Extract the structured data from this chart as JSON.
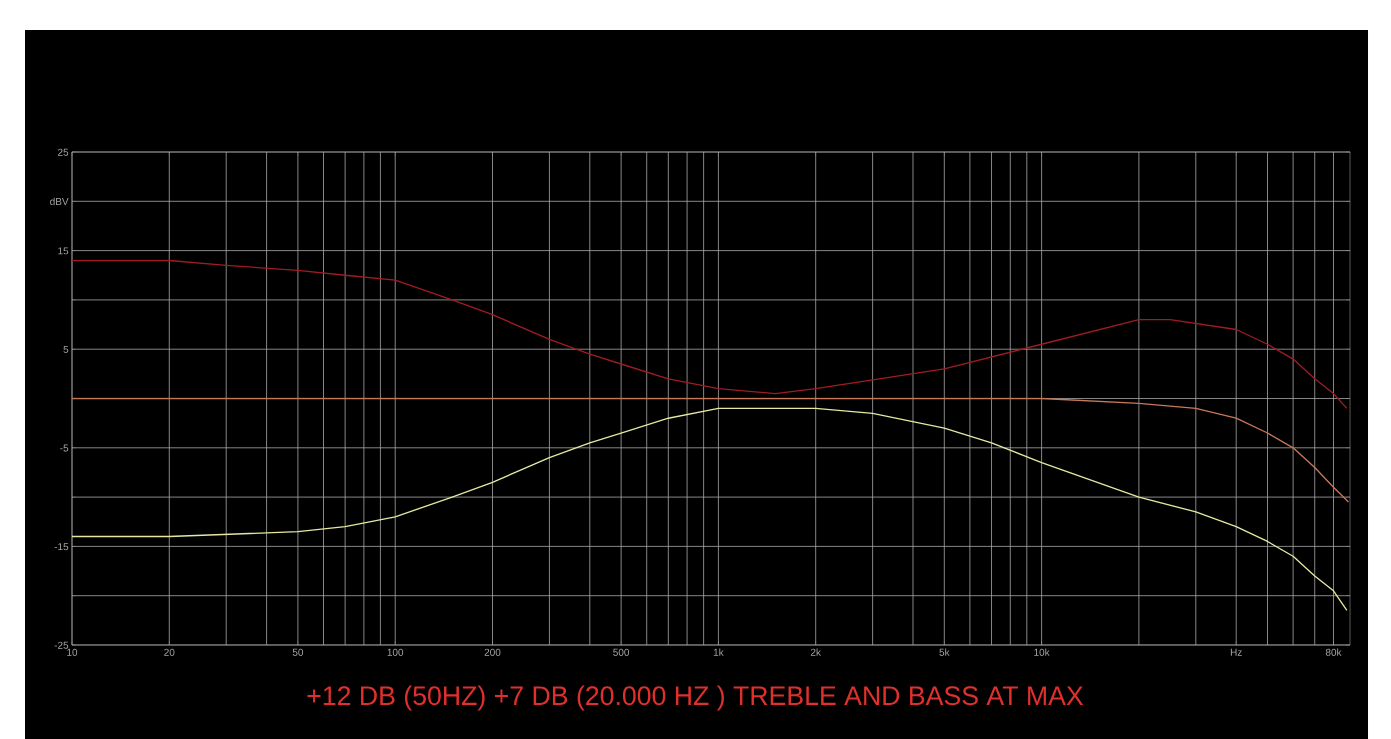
{
  "chart_data": {
    "type": "line",
    "title": "+12 DB (50HZ) +7 DB (20.000 HZ ) TREBLE AND BASS AT MAX",
    "log": "x",
    "grid": true,
    "xlim": [
      10,
      90000
    ],
    "ylim": [
      -25,
      25
    ],
    "xticks": [
      10,
      20,
      50,
      100,
      200,
      500,
      {
        "value": 1000,
        "label": "1k"
      },
      {
        "value": 2000,
        "label": "2k"
      },
      {
        "value": 5000,
        "label": "5k"
      },
      {
        "value": 10000,
        "label": "10k"
      },
      {
        "value": 40000,
        "label": "Hz"
      },
      {
        "value": 80000,
        "label": "80k"
      }
    ],
    "yticks": [
      25,
      {
        "value": 20,
        "label": "dBV"
      },
      15,
      {
        "value": 10,
        "label": null
      },
      5,
      {
        "value": 0,
        "label": null
      },
      -5,
      {
        "value": -10,
        "label": null
      },
      -15,
      {
        "value": -20,
        "label": null
      },
      -25
    ],
    "series": [
      {
        "color": "#a01c24",
        "x": [
          10,
          20,
          30,
          50,
          70,
          100,
          150,
          200,
          300,
          400,
          500,
          700,
          1000,
          1500,
          2000,
          5000,
          10000,
          20000,
          25000,
          40000,
          50000,
          60000,
          70000,
          80000,
          88000
        ],
        "values": [
          14,
          14,
          13.5,
          13,
          12.5,
          12,
          10,
          8.5,
          6,
          4.5,
          3.5,
          2,
          1,
          0.5,
          1,
          3,
          5.5,
          8,
          8,
          7,
          5.5,
          4,
          2,
          0.5,
          -1
        ]
      },
      {
        "color": "#c8785a",
        "x": [
          10,
          10000,
          20000,
          30000,
          40000,
          50000,
          60000,
          70000,
          80000,
          89000
        ],
        "values": [
          0,
          0,
          -0.5,
          -1,
          -2,
          -3.5,
          -5,
          -7,
          -9,
          -10.5
        ]
      },
      {
        "color": "#e6e8a0",
        "x": [
          10,
          20,
          50,
          70,
          100,
          150,
          200,
          300,
          400,
          500,
          700,
          1000,
          1500,
          2000,
          3000,
          5000,
          7000,
          10000,
          20000,
          30000,
          40000,
          50000,
          60000,
          70000,
          80000,
          88000
        ],
        "values": [
          -14,
          -14,
          -13.5,
          -13,
          -12,
          -10,
          -8.5,
          -6,
          -4.5,
          -3.5,
          -2,
          -1,
          -1,
          -1,
          -1.5,
          -3,
          -4.5,
          -6.5,
          -10,
          -11.5,
          -13,
          -14.5,
          -16,
          -18,
          -19.5,
          -21.5
        ]
      }
    ]
  }
}
